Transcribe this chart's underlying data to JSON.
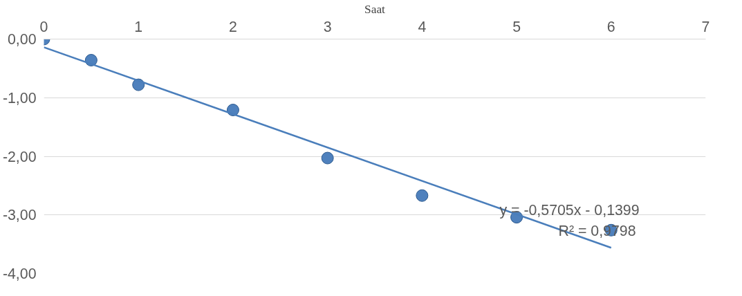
{
  "chart_data": {
    "type": "scatter",
    "xlabel": "Saat",
    "xlim": [
      0,
      7
    ],
    "xticks": [
      0,
      1,
      2,
      3,
      4,
      5,
      6,
      7
    ],
    "ylim": [
      -4,
      0
    ],
    "yticks": [
      {
        "value": 0,
        "label": "0,00"
      },
      {
        "value": -1,
        "label": "-1,00"
      },
      {
        "value": -2,
        "label": "-2,00"
      },
      {
        "value": -3,
        "label": "-3,00"
      },
      {
        "value": -4,
        "label": "-4,00"
      }
    ],
    "grid": "y",
    "marker": "circle",
    "series": [
      {
        "color": "#4f81bd",
        "x": [
          0,
          0.5,
          1,
          2,
          3,
          4,
          5,
          6
        ],
        "values": [
          0.0,
          -0.36,
          -0.78,
          -1.21,
          -2.03,
          -2.67,
          -3.04,
          -3.26
        ]
      },
      {
        "type": "line",
        "marker": "none",
        "color": "#4a7ebb",
        "x": [
          0,
          6
        ],
        "values": [
          -0.14,
          -3.56
        ]
      }
    ],
    "annotations": [
      "y = -0,5705x - 0,1399",
      "R² = 0,9798"
    ]
  }
}
